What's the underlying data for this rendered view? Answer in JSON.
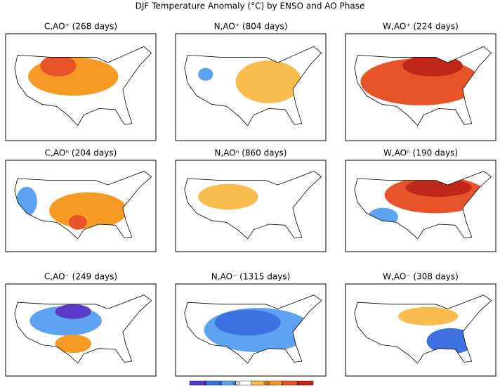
{
  "title": "DJF Temperature Anomaly (°C) by ENSO and AO Phase",
  "panels": [
    {
      "title": "C,AO⁺ (268 days)"
    },
    {
      "title": "N,AO⁺ (804 days)"
    },
    {
      "title": "W,AO⁺ (224 days)"
    },
    {
      "title": "C,AOⁿ (204 days)"
    },
    {
      "title": "N,AOⁿ (860 days)"
    },
    {
      "title": "W,AOⁿ (190 days)"
    },
    {
      "title": "C,AO⁻ (249 days)"
    },
    {
      "title": "N,AO⁻ (1315 days)"
    },
    {
      "title": "W,AO⁻ (308 days)"
    }
  ],
  "colorbar": {
    "labels": [
      "-2",
      "-1",
      "-0.5",
      "0.5",
      "1",
      "2"
    ]
  }
}
